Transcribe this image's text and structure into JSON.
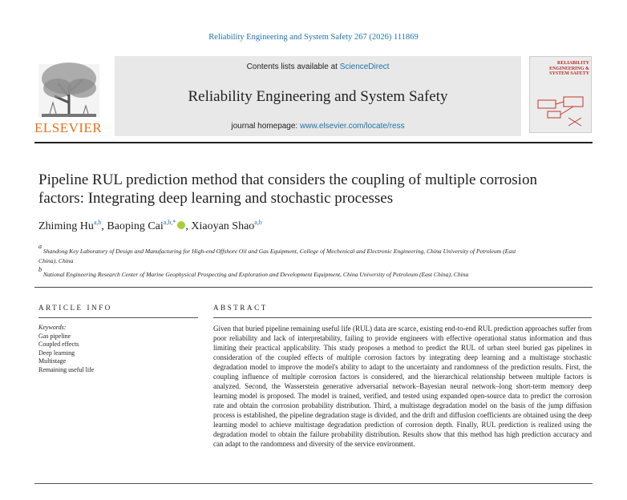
{
  "journal_ref": "Reliability Engineering and System Safety 267 (2026) 111869",
  "header": {
    "contents_prefix": "Contents lists available at ",
    "contents_link": "ScienceDirect",
    "journal_title": "Reliability Engineering and System Safety",
    "homepage_prefix": "journal homepage: ",
    "homepage_link": "www.elsevier.com/locate/ress",
    "publisher": "ELSEVIER",
    "cover_title": "RELIABILITY ENGINEERING & SYSTEM SAFETY"
  },
  "title": "Pipeline RUL prediction method that considers the coupling of multiple corrosion factors: Integrating deep learning and stochastic processes",
  "authors": [
    {
      "name": "Zhiming Hu",
      "affil": "a,b"
    },
    {
      "name": "Baoping Cai",
      "affil": "a,b,*"
    },
    {
      "name": "Xiaoyan Shao",
      "affil": "a,b"
    }
  ],
  "affiliations": [
    {
      "marker": "a",
      "text": "Shandong Key Laboratory of Design and Manufacturing for High-end Offshore Oil and Gas Equipment, College of Mechenical and Electronic Engineering, China University of Petroleum (East China), China"
    },
    {
      "marker": "b",
      "text": "National Engineering Research Center of Marine Geophysical Prospecting and Exploration and Development Equipment, China University of Petroleum (East China), China"
    }
  ],
  "article_info": {
    "heading": "ARTICLE INFO",
    "keywords_label": "Keywords:",
    "keywords": [
      "Gas pipeline",
      "Coupled effects",
      "Deep learning",
      "Multistage",
      "Remaining useful life"
    ]
  },
  "abstract": {
    "heading": "ABSTRACT",
    "text": "Given that buried pipeline remaining useful life (RUL) data are scarce, existing end-to-end RUL prediction approaches suffer from poor reliability and lack of interpretability, failing to provide engineers with effective operational status information and thus limiting their practical applicability. This study proposes a method to predict the RUL of urban steel buried gas pipelines in consideration of the coupled effects of multiple corrosion factors by integrating deep learning and a multistage stochastic degradation model to improve the model's ability to adapt to the uncertainty and randomness of the prediction results. First, the coupling influence of multiple corrosion factors is considered, and the hierarchical relationship between multiple factors is analyzed. Second, the Wasserstein generative adversarial network–Bayesian neural network–long short-term memory deep learning model is proposed. The model is trained, verified, and tested using expanded open-source data to predict the corrosion rate and obtain the corrosion probability distribution. Third, a multistage degradation model on the basis of the jump diffusion process is established, the pipeline degradation stage is divided, and the drift and diffusion coefficients are obtained using the deep learning model to achieve multistage degradation prediction of corrosion depth. Finally, RUL prediction is realized using the degradation model to obtain the failure probability distribution. Results show that this method has high prediction accuracy and can adapt to the randomness and diversity of the service environment."
  }
}
